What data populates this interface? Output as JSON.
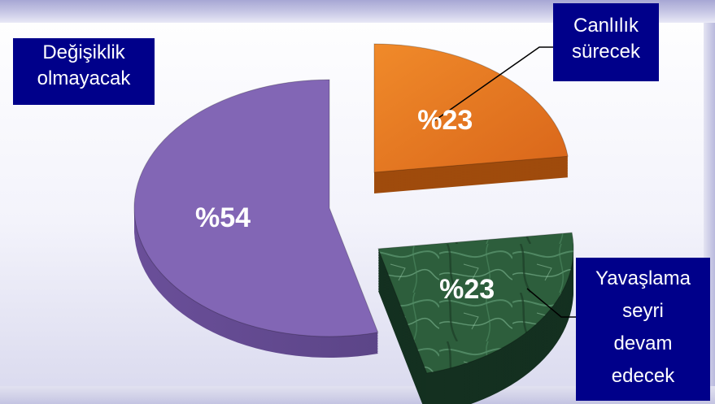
{
  "chart_data": {
    "type": "pie",
    "style": "3d-exploded",
    "categories": [
      "Değişiklik olmayacak",
      "Canlılık sürecek",
      "Yavaşlama seyri devam edecek"
    ],
    "values": [
      54,
      23,
      23
    ],
    "data_labels": [
      "%54",
      "%23",
      "%23"
    ],
    "colors": [
      "#8266b5",
      "#e87a1e",
      "#2d5e3c"
    ],
    "label_lines": {
      "line1": [
        "Değişiklik",
        "olmayacak"
      ],
      "line2": [
        "Canlılık",
        "sürecek"
      ],
      "line3": [
        "Yavaşlama",
        "seyri",
        "devam",
        "edecek"
      ]
    },
    "label_background": "#00008a",
    "label_color": "#ffffff",
    "data_label_color": "#ffffff"
  }
}
